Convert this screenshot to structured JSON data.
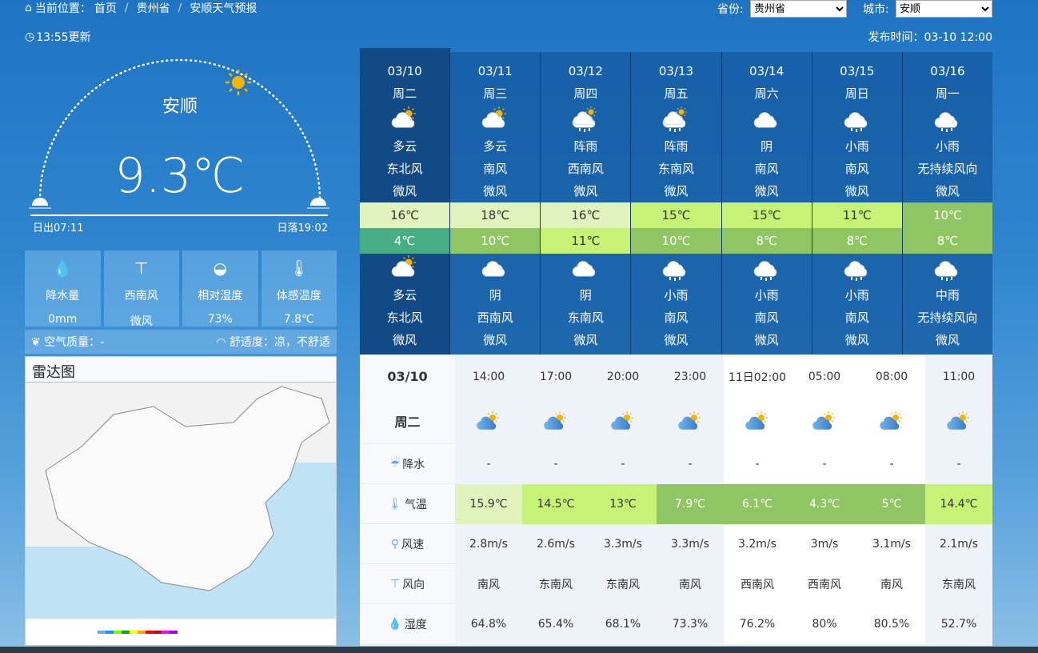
{
  "breadcrumb": {
    "label": "当前位置：",
    "items": [
      "首页",
      "贵州省",
      "安顺天气预报"
    ]
  },
  "selectors": {
    "province_label": "省份:",
    "province_value": "贵州省",
    "city_label": "城市:",
    "city_value": "安顺"
  },
  "update": "13:55更新",
  "publish": "发布时间：03-10 12:00",
  "current": {
    "city": "安顺",
    "temp": "9.3℃",
    "sunrise": "日出07:11",
    "sunset": "日落19:02"
  },
  "stats": [
    {
      "icon": "raindrops-icon",
      "label": "降水量",
      "value": "0mm"
    },
    {
      "icon": "wind-vane-icon",
      "label": "西南风",
      "value": "微风"
    },
    {
      "icon": "humidity-drop-icon",
      "label": "相对湿度",
      "value": "73%"
    },
    {
      "icon": "thermometer-icon",
      "label": "体感温度",
      "value": "7.8℃"
    }
  ],
  "air_quality": "空气质量：-",
  "comfort": "舒适度：凉，不舒适",
  "radar": {
    "title": "雷达图"
  },
  "colors": {
    "t_pale": "#e0f3bc",
    "t_lime": "#c6f376",
    "t_green": "#8fc563",
    "t_teal": "#46ad84"
  },
  "daily": [
    {
      "date": "03/10",
      "week": "周二",
      "day_icon": "partly-cloudy",
      "day_wx": "多云",
      "day_wind": "东北风",
      "day_lvl": "微风",
      "high": "16℃",
      "high_c": "t_pale",
      "low": "4℃",
      "low_c": "t_teal",
      "night_icon": "partly-cloudy",
      "night_wx": "多云",
      "night_wind": "东北风",
      "night_lvl": "微风"
    },
    {
      "date": "03/11",
      "week": "周三",
      "day_icon": "partly-cloudy",
      "day_wx": "多云",
      "day_wind": "南风",
      "day_lvl": "微风",
      "high": "18℃",
      "high_c": "t_pale",
      "low": "10℃",
      "low_c": "t_green",
      "night_icon": "cloudy",
      "night_wx": "阴",
      "night_wind": "西南风",
      "night_lvl": "微风"
    },
    {
      "date": "03/12",
      "week": "周四",
      "day_icon": "shower",
      "day_wx": "阵雨",
      "day_wind": "西南风",
      "day_lvl": "微风",
      "high": "16℃",
      "high_c": "t_pale",
      "low": "11℃",
      "low_c": "t_lime",
      "night_icon": "cloudy",
      "night_wx": "阴",
      "night_wind": "东南风",
      "night_lvl": "微风"
    },
    {
      "date": "03/13",
      "week": "周五",
      "day_icon": "shower",
      "day_wx": "阵雨",
      "day_wind": "东南风",
      "day_lvl": "微风",
      "high": "15℃",
      "high_c": "t_lime",
      "low": "10℃",
      "low_c": "t_green",
      "night_icon": "rain",
      "night_wx": "小雨",
      "night_wind": "南风",
      "night_lvl": "微风"
    },
    {
      "date": "03/14",
      "week": "周六",
      "day_icon": "cloudy",
      "day_wx": "阴",
      "day_wind": "南风",
      "day_lvl": "微风",
      "high": "15℃",
      "high_c": "t_lime",
      "low": "8℃",
      "low_c": "t_green",
      "night_icon": "rain",
      "night_wx": "小雨",
      "night_wind": "南风",
      "night_lvl": "微风"
    },
    {
      "date": "03/15",
      "week": "周日",
      "day_icon": "rain",
      "day_wx": "小雨",
      "day_wind": "南风",
      "day_lvl": "微风",
      "high": "11℃",
      "high_c": "t_lime",
      "low": "8℃",
      "low_c": "t_green",
      "night_icon": "rain",
      "night_wx": "小雨",
      "night_wind": "南风",
      "night_lvl": "微风"
    },
    {
      "date": "03/16",
      "week": "周一",
      "day_icon": "rain",
      "day_wx": "小雨",
      "day_wind": "无持续风向",
      "day_lvl": "微风",
      "high": "10℃",
      "high_c": "t_green",
      "low": "8℃",
      "low_c": "t_green",
      "night_icon": "rain",
      "night_wx": "中雨",
      "night_wind": "无持续风向",
      "night_lvl": "微风"
    }
  ],
  "hourly": {
    "date": "03/10",
    "week": "周二",
    "times": [
      "14:00",
      "17:00",
      "20:00",
      "23:00",
      "11日02:00",
      "05:00",
      "08:00",
      "11:00"
    ],
    "labels": {
      "precip": "降水",
      "temp": "气温",
      "speed": "风速",
      "dir": "风向",
      "hum": "湿度"
    },
    "precip": [
      "-",
      "-",
      "-",
      "-",
      "-",
      "-",
      "-",
      "-"
    ],
    "temp": [
      "15.9℃",
      "14.5℃",
      "13℃",
      "7.9℃",
      "6.1℃",
      "4.3℃",
      "5℃",
      "14.4℃"
    ],
    "temp_c": [
      "t_pale",
      "t_lime",
      "t_lime",
      "t_green",
      "t_green",
      "t_green",
      "t_green",
      "t_lime"
    ],
    "speed": [
      "2.8m/s",
      "2.6m/s",
      "3.3m/s",
      "3.3m/s",
      "3.2m/s",
      "3m/s",
      "3.1m/s",
      "2.1m/s"
    ],
    "dir": [
      "南风",
      "东南风",
      "东南风",
      "南风",
      "西南风",
      "西南风",
      "南风",
      "东南风"
    ],
    "hum": [
      "64.8%",
      "65.4%",
      "68.1%",
      "73.3%",
      "76.2%",
      "80%",
      "80.5%",
      "52.7%"
    ]
  }
}
